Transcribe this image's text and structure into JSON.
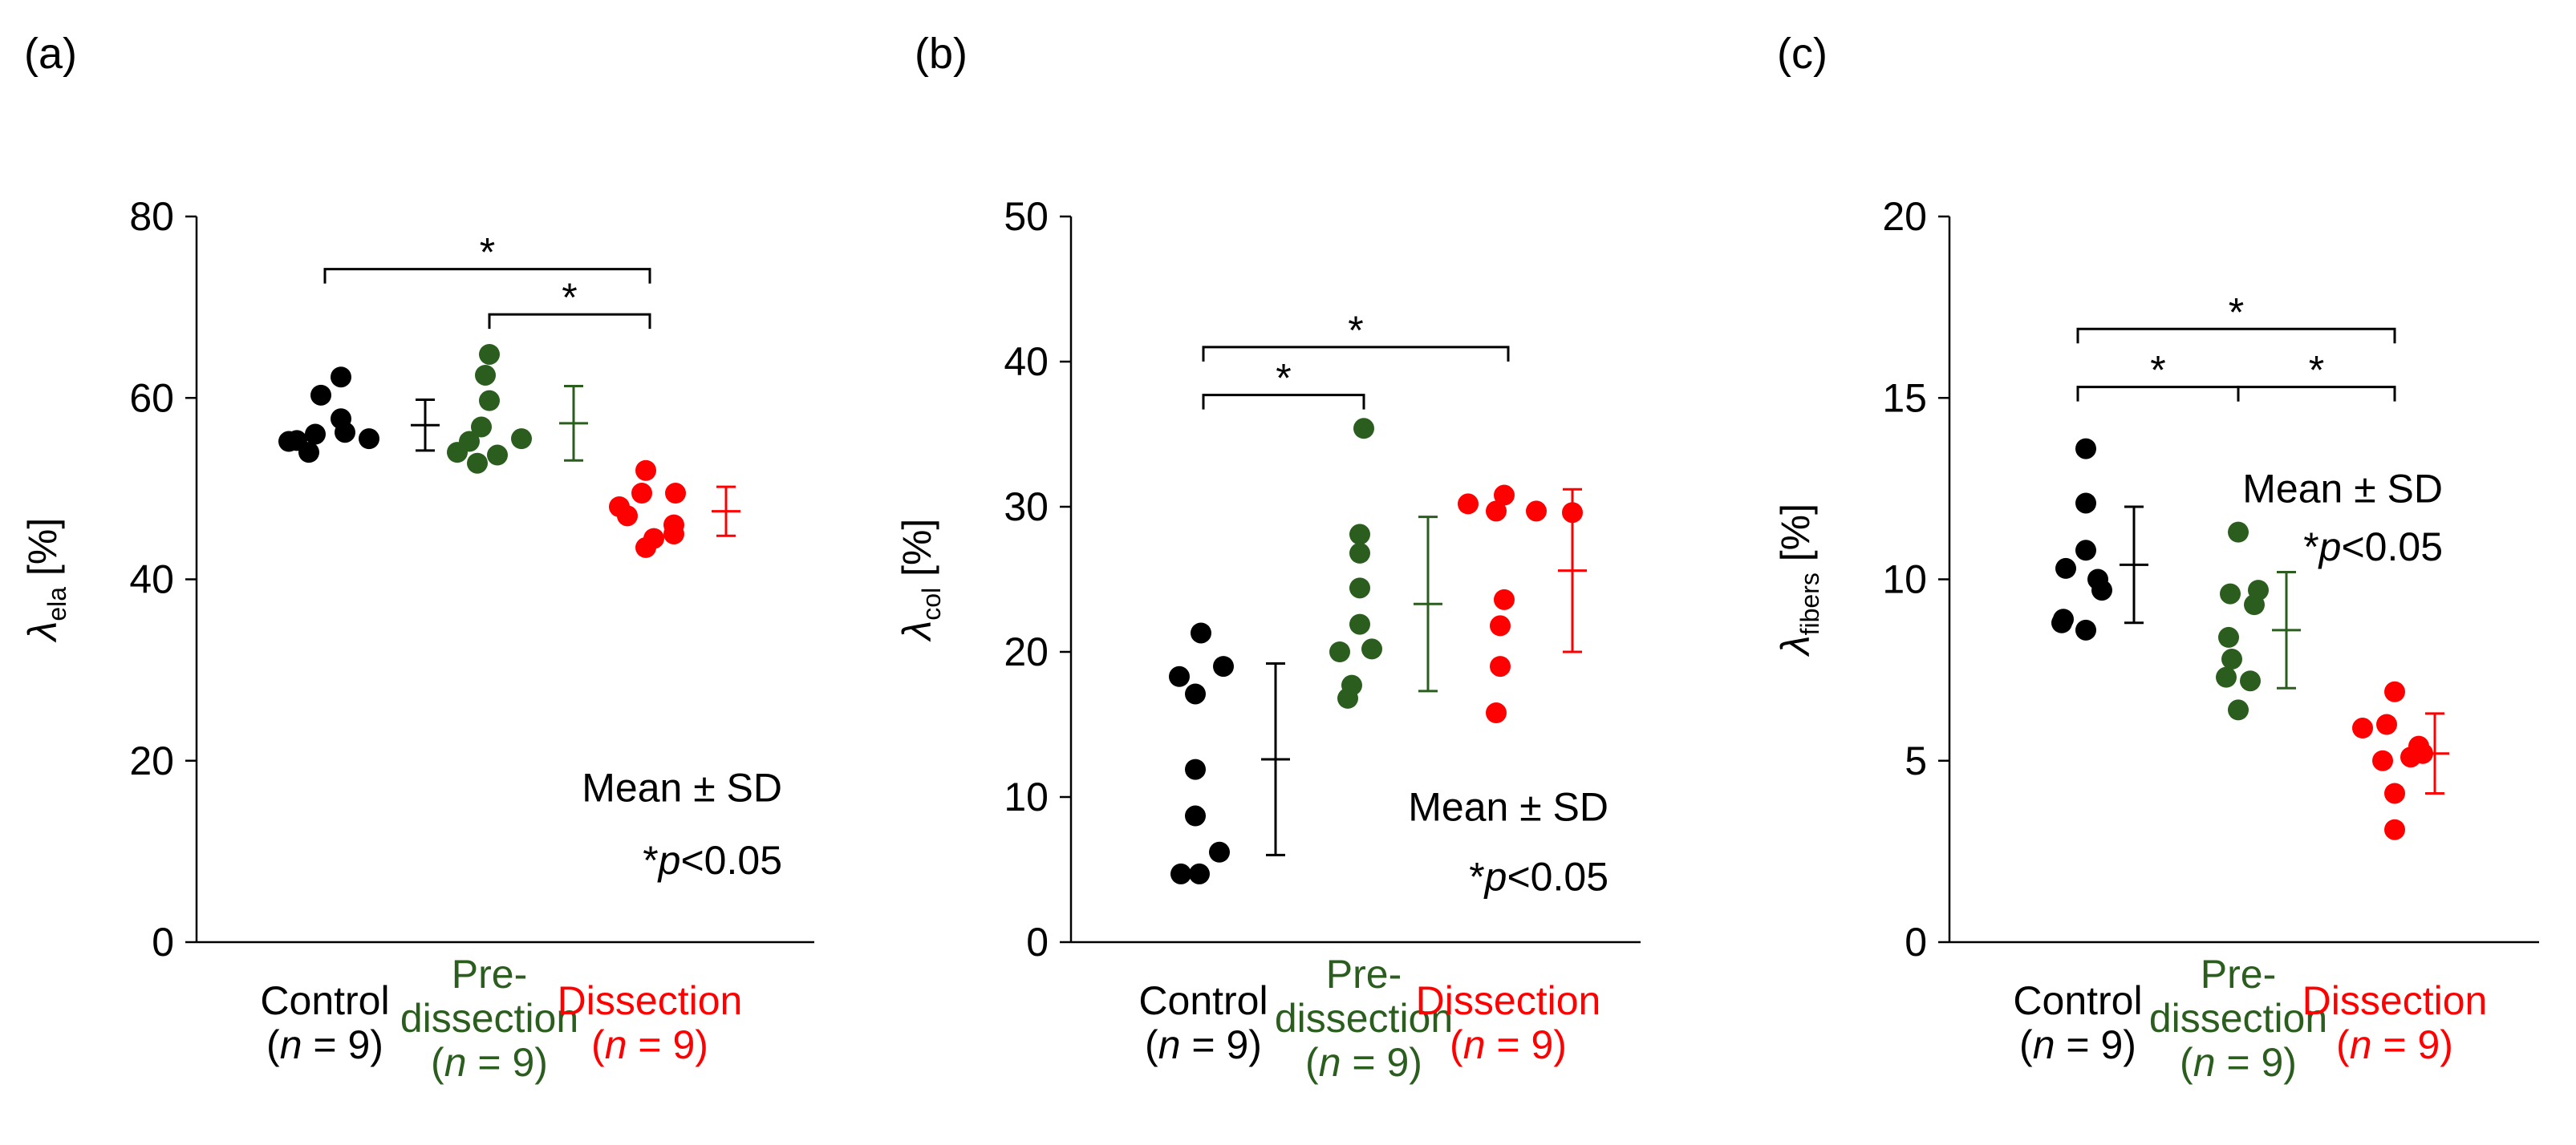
{
  "chart_data": [
    {
      "type": "scatter",
      "panel_label": "(a)",
      "ylabel": {
        "symbol": "λ",
        "sub": "ela",
        "unit": "[%]"
      },
      "ylim": [
        0,
        80
      ],
      "yticks": [
        "0",
        "20",
        "40",
        "60",
        "80"
      ],
      "categories": [
        {
          "lines": [
            "Control",
            "(n = 9)"
          ],
          "color": "#000000"
        },
        {
          "lines": [
            "Pre-",
            "dissection",
            "(n = 9)"
          ],
          "color": "#2b5e1e"
        },
        {
          "lines": [
            "Dissection",
            "(n = 9)"
          ],
          "color": "#ff0000"
        }
      ],
      "series": [
        {
          "name": "Control",
          "color": "#000000",
          "values": [
            55.2,
            56.0,
            62.3,
            60.3,
            57.7,
            54.0,
            55.5,
            56.2,
            55.3
          ],
          "mean": 57.0,
          "sd": 2.8
        },
        {
          "name": "Pre-dissection",
          "color": "#2b5e1e",
          "values": [
            55.2,
            54.0,
            64.8,
            62.5,
            59.7,
            56.8,
            52.8,
            53.7,
            55.5
          ],
          "mean": 57.2,
          "sd": 4.1
        },
        {
          "name": "Dissection",
          "color": "#ff0000",
          "values": [
            49.5,
            48.0,
            52.0,
            49.5,
            46.0,
            43.5,
            45.0,
            47.0,
            44.5
          ],
          "mean": 47.5,
          "sd": 2.7
        }
      ],
      "brackets": [
        {
          "from": 0,
          "to": 2,
          "y": 74.2,
          "label": "*"
        },
        {
          "from": 1,
          "to": 2,
          "y": 69.2,
          "label": "*"
        }
      ],
      "annotation": {
        "line1": "Mean ± SD",
        "star": "*",
        "p": "p",
        "rest": "<0.05",
        "y1": 17,
        "y2": 9
      }
    },
    {
      "type": "scatter",
      "panel_label": "(b)",
      "ylabel": {
        "symbol": "λ",
        "sub": "col",
        "unit": "[%]"
      },
      "ylim": [
        0,
        50
      ],
      "yticks": [
        "0",
        "10",
        "20",
        "30",
        "40",
        "50"
      ],
      "categories": [
        {
          "lines": [
            "Control",
            "(n = 9)"
          ],
          "color": "#000000"
        },
        {
          "lines": [
            "Pre-",
            "dissection",
            "(n = 9)"
          ],
          "color": "#2b5e1e"
        },
        {
          "lines": [
            "Dissection",
            "(n = 9)"
          ],
          "color": "#ff0000"
        }
      ],
      "series": [
        {
          "name": "Control",
          "color": "#000000",
          "values": [
            21.3,
            18.3,
            17.1,
            19.0,
            11.9,
            8.7,
            6.2,
            4.7,
            4.7
          ],
          "mean": 12.6,
          "sd": 6.6
        },
        {
          "name": "Pre-dissection",
          "color": "#2b5e1e",
          "values": [
            35.4,
            28.1,
            26.8,
            24.4,
            21.9,
            20.0,
            20.2,
            17.7,
            16.8
          ],
          "mean": 23.3,
          "sd": 6.0
        },
        {
          "name": "Dissection",
          "color": "#ff0000",
          "values": [
            30.2,
            30.8,
            29.7,
            29.7,
            29.6,
            23.6,
            21.8,
            19.0,
            15.8
          ],
          "mean": 25.6,
          "sd": 5.6
        }
      ],
      "brackets": [
        {
          "from": 0,
          "to": 2,
          "y": 41.0,
          "label": "*"
        },
        {
          "from": 0,
          "to": 1,
          "y": 37.7,
          "label": "*"
        }
      ],
      "annotation": {
        "line1": "Mean ± SD",
        "star": "*",
        "p": "p",
        "rest": "<0.05",
        "y1": 9.3,
        "y2": 4.5
      }
    },
    {
      "type": "scatter",
      "panel_label": "(c)",
      "ylabel": {
        "symbol": "λ",
        "sub": "fibers",
        "unit": "[%]"
      },
      "ylim": [
        0,
        20
      ],
      "yticks": [
        "0",
        "5",
        "10",
        "15",
        "20"
      ],
      "categories": [
        {
          "lines": [
            "Control",
            "(n = 9)"
          ],
          "color": "#000000"
        },
        {
          "lines": [
            "Pre-",
            "dissection",
            "(n = 9)"
          ],
          "color": "#2b5e1e"
        },
        {
          "lines": [
            "Dissection",
            "(n = 9)"
          ],
          "color": "#ff0000"
        }
      ],
      "series": [
        {
          "name": "Control",
          "color": "#000000",
          "values": [
            13.6,
            12.1,
            10.8,
            10.3,
            10.0,
            9.7,
            8.8,
            8.6,
            8.9
          ],
          "mean": 10.4,
          "sd": 1.6
        },
        {
          "name": "Pre-dissection",
          "color": "#2b5e1e",
          "values": [
            11.3,
            9.6,
            9.3,
            8.4,
            7.8,
            7.2,
            7.3,
            6.4,
            9.7
          ],
          "mean": 8.6,
          "sd": 1.6
        },
        {
          "name": "Dissection",
          "color": "#ff0000",
          "values": [
            6.9,
            6.0,
            5.4,
            5.1,
            5.9,
            5.0,
            4.1,
            3.1,
            5.2
          ],
          "mean": 5.2,
          "sd": 1.1
        }
      ],
      "brackets": [
        {
          "from": 0,
          "to": 2,
          "y": 16.9,
          "label": "*"
        },
        {
          "from": 0,
          "to": 1,
          "y": 15.3,
          "label": "*"
        },
        {
          "from": 1,
          "to": 2,
          "y": 15.3,
          "label": "*"
        }
      ],
      "annotation": {
        "line1": "Mean ± SD",
        "star": "*",
        "p": "p",
        "rest": "<0.05",
        "y1": 12.5,
        "y2": 10.9
      }
    }
  ]
}
